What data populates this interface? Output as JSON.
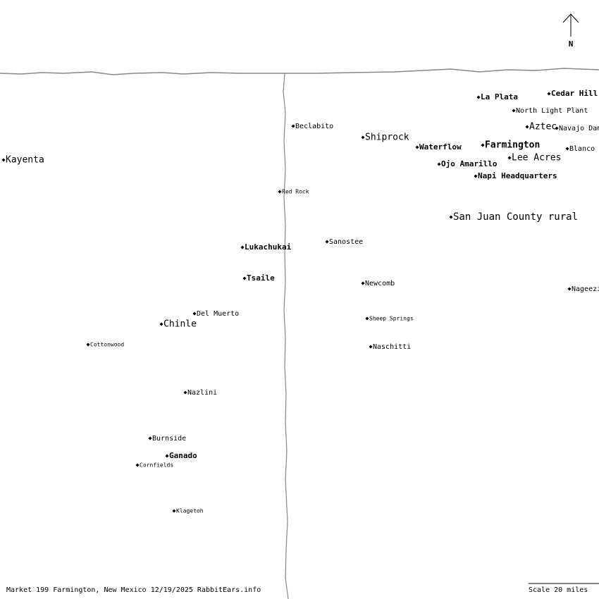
{
  "map": {
    "north": "N",
    "places": [
      "Kayenta",
      "Beclabito",
      "Shiprock",
      "Red Rock",
      "Lukachukai",
      "Sanostee",
      "Tsaile",
      "Newcomb",
      "Del Muerto",
      "Chinle",
      "Sheep Springs",
      "Cottonwood",
      "Naschitti",
      "Nazlini",
      "Burnside",
      "Ganado",
      "Cornfields",
      "Klagetoh",
      "La Plata",
      "Cedar Hill",
      "North Light Plant",
      "Aztec",
      "Navajo Dam",
      "Waterflow",
      "Farmington",
      "Blanco",
      "Lee Acres",
      "Ojo Amarillo",
      "Napi Headquarters",
      "San Juan County rural",
      "Nageezi"
    ],
    "footer": "Market 199 Farmington, New Mexico 12/19/2025 RabbitEars.info",
    "scale": "Scale 20 miles"
  }
}
